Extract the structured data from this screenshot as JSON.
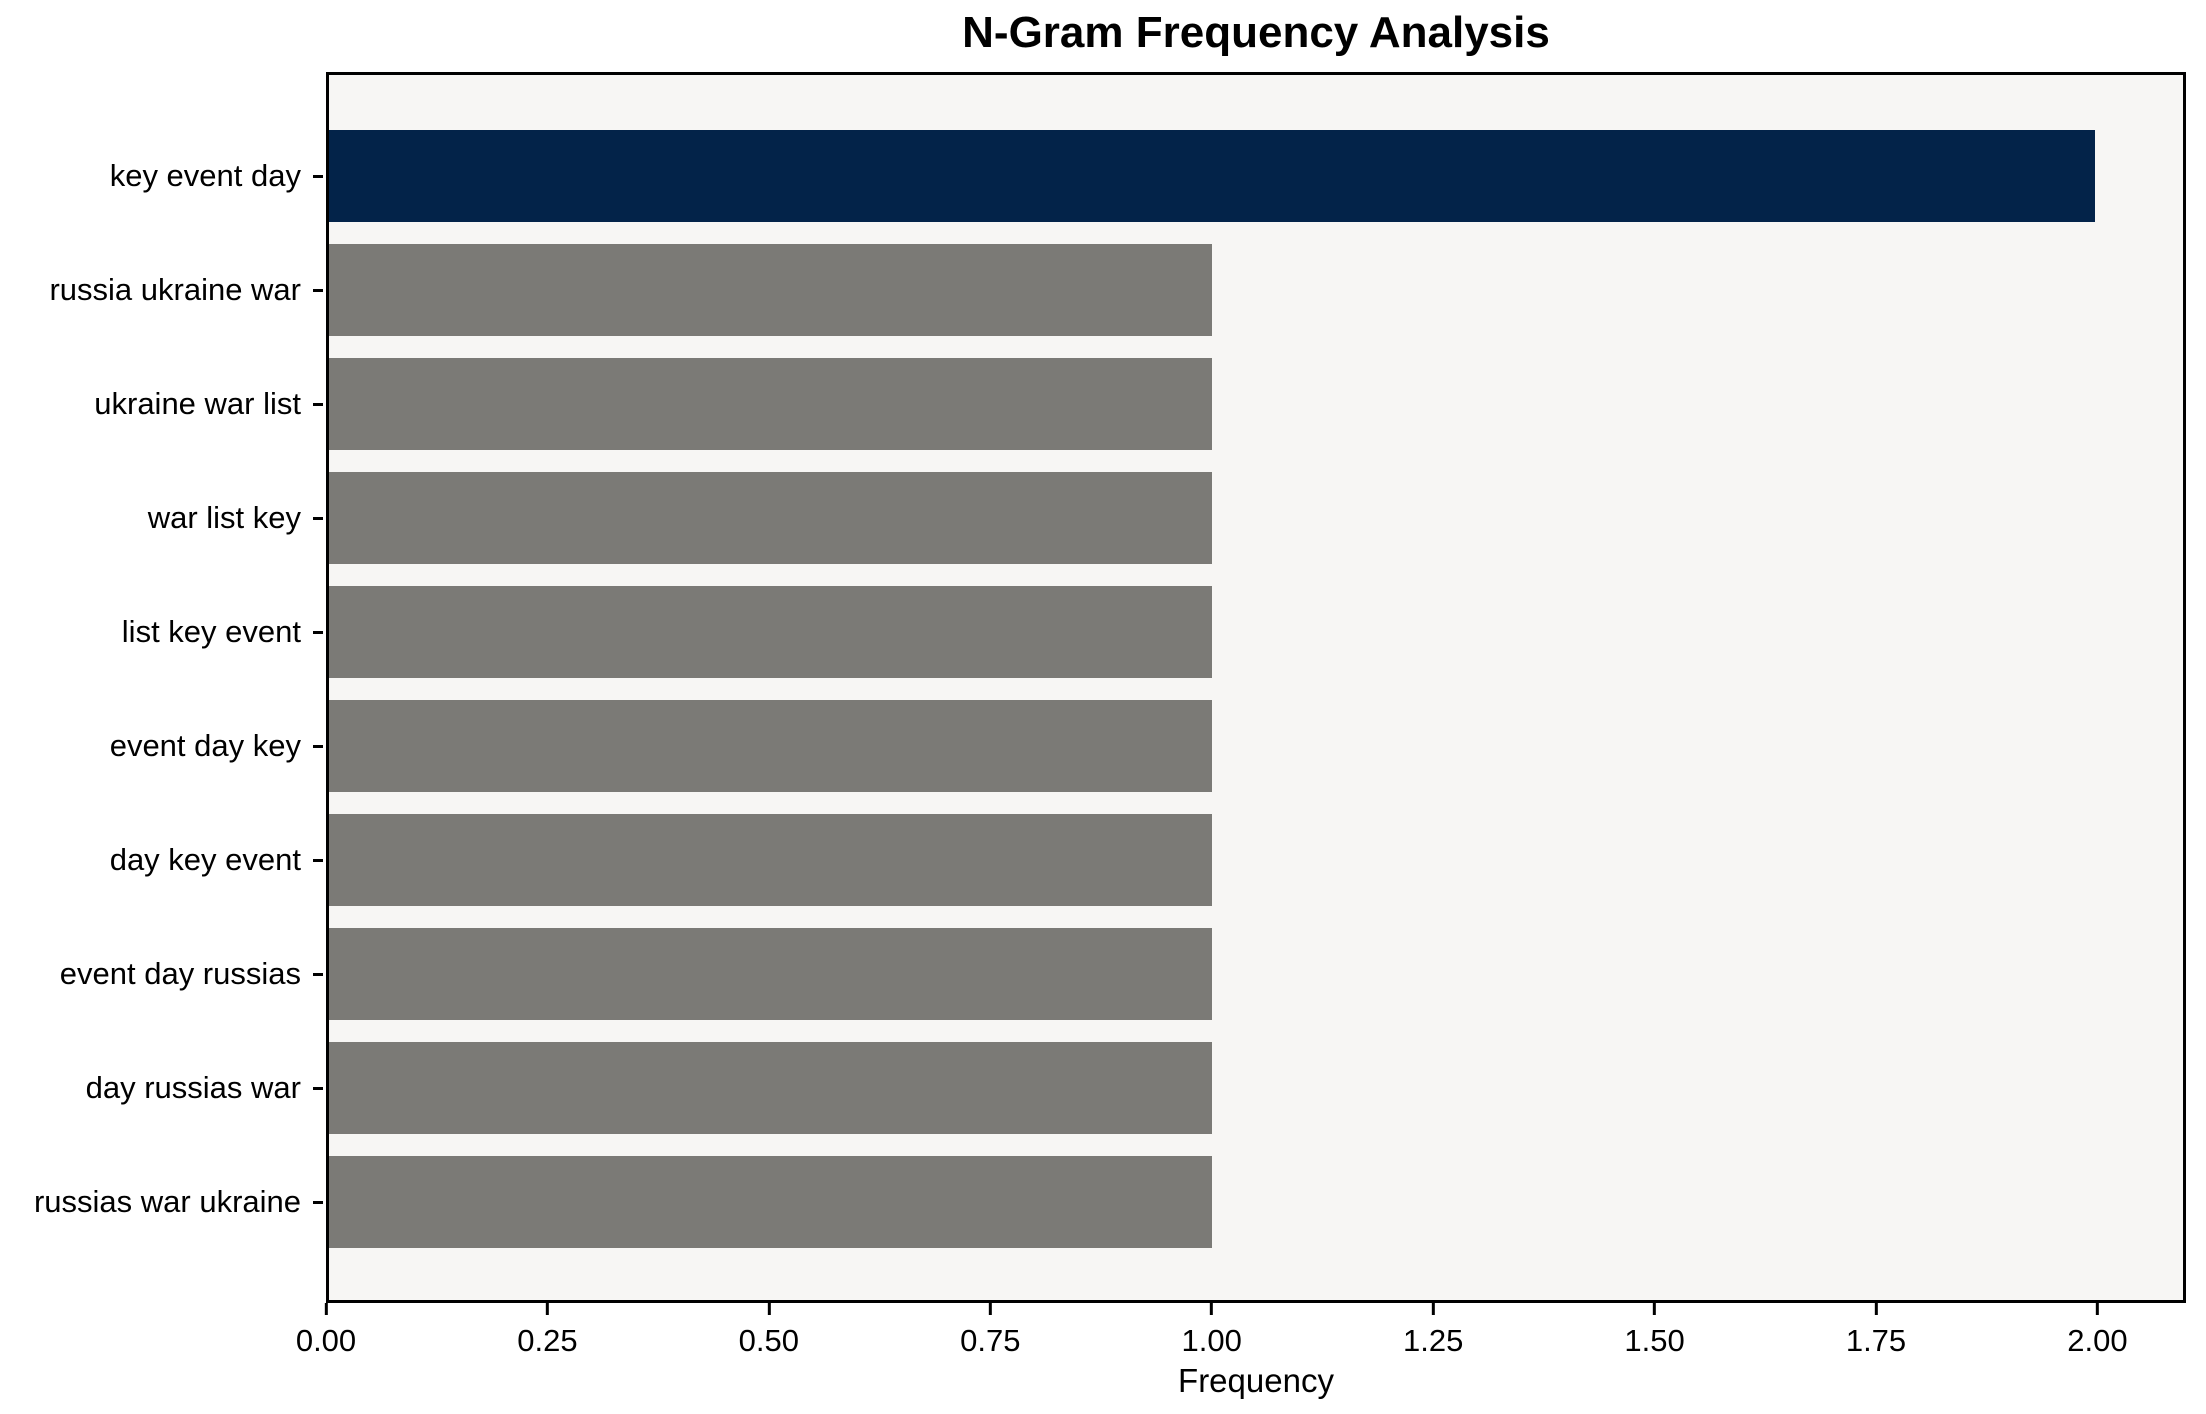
{
  "chart_data": {
    "type": "bar",
    "orientation": "horizontal",
    "title": "N-Gram Frequency Analysis",
    "categories": [
      "key event day",
      "russia ukraine war",
      "ukraine war list",
      "war list key",
      "list key event",
      "event day key",
      "day key event",
      "event day russias",
      "day russias war",
      "russias war ukraine"
    ],
    "values": [
      2,
      1,
      1,
      1,
      1,
      1,
      1,
      1,
      1,
      1
    ],
    "xlabel": "Frequency",
    "ylabel": "",
    "xlim": [
      0,
      2.1
    ],
    "xtick_labels": [
      "0.00",
      "0.25",
      "0.50",
      "0.75",
      "1.00",
      "1.25",
      "1.50",
      "1.75",
      "2.00"
    ],
    "xtick_values": [
      0,
      0.25,
      0.5,
      0.75,
      1.0,
      1.25,
      1.5,
      1.75,
      2.0
    ],
    "grid": false,
    "legend_position": "none",
    "colors": {
      "highlight_bar": "#032349",
      "default_bar": "#7b7a76",
      "plot_background": "#f7f6f4",
      "figure_background": "#ffffff",
      "axis_line": "#000000",
      "text": "#000000"
    },
    "highlight_index": 0
  }
}
